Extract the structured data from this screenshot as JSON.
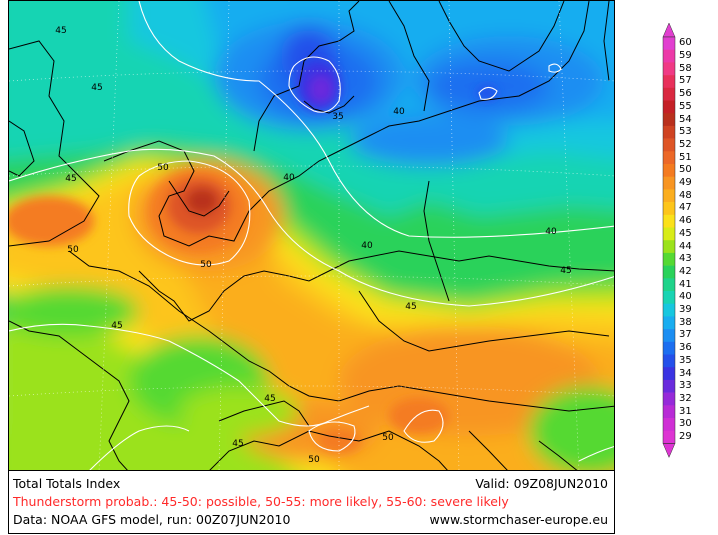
{
  "map": {
    "contours": [
      {
        "label": "45",
        "color": "#ffffff"
      },
      {
        "label": "45",
        "color": "#ffffff"
      },
      {
        "label": "45",
        "color": "#ffffff"
      },
      {
        "label": "45",
        "color": "#ffffff"
      },
      {
        "label": "45",
        "color": "#ffffff"
      },
      {
        "label": "45",
        "color": "#ffffff"
      },
      {
        "label": "45",
        "color": "#ffffff"
      },
      {
        "label": "50",
        "color": "#ffffff"
      },
      {
        "label": "50",
        "color": "#ffffff"
      },
      {
        "label": "50",
        "color": "#ffffff"
      },
      {
        "label": "50",
        "color": "#ffffff"
      },
      {
        "label": "50",
        "color": "#ffffff"
      },
      {
        "label": "40",
        "color": "#ffffff"
      },
      {
        "label": "40",
        "color": "#ffffff"
      },
      {
        "label": "40",
        "color": "#ffffff"
      },
      {
        "label": "40",
        "color": "#ffffff"
      },
      {
        "label": "35",
        "color": "#ffffff"
      }
    ]
  },
  "footer": {
    "title": "Total Totals Index",
    "valid": "Valid: 09Z08JUN2010",
    "probability": "Thunderstorm probab.: 45-50: possible, 50-55: more likely, 55-60: severe likely",
    "data_source": "Data: NOAA GFS model, run: 00Z07JUN2010",
    "website": "www.stormchaser-europe.eu"
  },
  "legend": {
    "levels": [
      {
        "value": "60",
        "color": "#e13fd0"
      },
      {
        "value": "59",
        "color": "#ec3aa8"
      },
      {
        "value": "58",
        "color": "#f03a85"
      },
      {
        "value": "57",
        "color": "#e8305b"
      },
      {
        "value": "56",
        "color": "#d92840"
      },
      {
        "value": "55",
        "color": "#c42026"
      },
      {
        "value": "54",
        "color": "#b9301d"
      },
      {
        "value": "53",
        "color": "#cf4322"
      },
      {
        "value": "52",
        "color": "#de5526"
      },
      {
        "value": "51",
        "color": "#ec6828"
      },
      {
        "value": "50",
        "color": "#f47b20"
      },
      {
        "value": "49",
        "color": "#f89522"
      },
      {
        "value": "48",
        "color": "#fbae1f"
      },
      {
        "value": "47",
        "color": "#fdc51a"
      },
      {
        "value": "46",
        "color": "#fbe11a"
      },
      {
        "value": "45",
        "color": "#d8ec18"
      },
      {
        "value": "44",
        "color": "#9be21b"
      },
      {
        "value": "43",
        "color": "#55d933"
      },
      {
        "value": "42",
        "color": "#2ad25a"
      },
      {
        "value": "41",
        "color": "#1fd38a"
      },
      {
        "value": "40",
        "color": "#19d4b3"
      },
      {
        "value": "39",
        "color": "#17c7df"
      },
      {
        "value": "38",
        "color": "#19adf0"
      },
      {
        "value": "37",
        "color": "#1b8ef2"
      },
      {
        "value": "36",
        "color": "#1c6ef0"
      },
      {
        "value": "35",
        "color": "#2450ea"
      },
      {
        "value": "34",
        "color": "#3a33e2"
      },
      {
        "value": "33",
        "color": "#6a2bdd"
      },
      {
        "value": "32",
        "color": "#962ad9"
      },
      {
        "value": "31",
        "color": "#b82bd6"
      },
      {
        "value": "30",
        "color": "#cf2fd5"
      },
      {
        "value": "29",
        "color": "#dd35d3"
      }
    ]
  }
}
